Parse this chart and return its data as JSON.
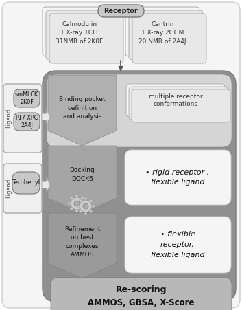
{
  "receptor_label": "Receptor",
  "calmodulin_text": "Calmodulin\n1 X-ray 1CLL\n31NMR of 2K0F",
  "centrin_text": "Centrin\n1 X-ray 2GGM\n20 NMR of 2A4J",
  "ligand1_label": "Ligand",
  "ligand2_label": "Ligand",
  "ligand2_text": "Terphenyl",
  "smmlck_text": "smMLCK\n2K0F",
  "p17_text": "P17-XPC\n2A4J",
  "binding_text": "Binding pocket\ndefinition\nand analysis",
  "docking_text": "Docking\nDOCK6",
  "refinement_text": "Refinement\non best\ncomplexes\nAMMOS",
  "multiple_text": "multiple receptor\nconformations",
  "rigid_text": "• rigid receptor ,\nflexible ligand",
  "flexible_text": "• flexible\nreceptor,\nflexible ligand",
  "rescoring_title": "Re-scoring",
  "rescoring_text": "AMMOS, GBSA, X-Score",
  "col_white": "#ffffff",
  "col_light": "#f0f0f0",
  "col_lighter": "#f5f5f5",
  "col_light2": "#e8e8e8",
  "col_mid": "#c8c8c8",
  "col_mid2": "#b8b8b8",
  "col_dark": "#909090",
  "col_darker": "#787878",
  "col_darkest": "#606060",
  "col_border": "#aaaaaa",
  "col_border2": "#cccccc"
}
